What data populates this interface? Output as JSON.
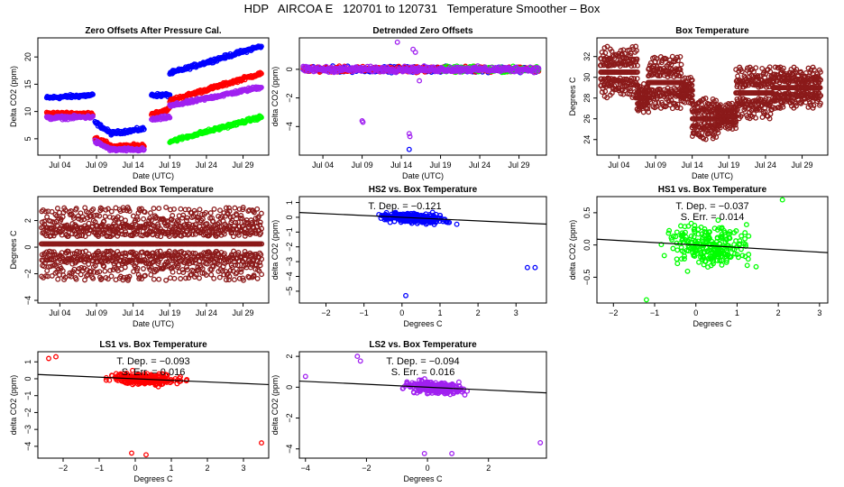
{
  "page_title": "HDP   AIRCOA E   120701 to 120731   Temperature Smoother – Box",
  "colors": {
    "blue": "#0000ff",
    "red": "#ff0000",
    "purple": "#a020f0",
    "green": "#00ff00",
    "brown": "#8b1a1a",
    "line": "#000000"
  },
  "chart_data": [
    {
      "id": "zero-offsets",
      "type": "scatter",
      "title": "Zero Offsets After Pressure Cal.",
      "xlabel": "Date (UTC)",
      "ylabel": "Delta CO2 (ppm)",
      "xlim": [
        1,
        32.5
      ],
      "ylim": [
        2,
        23.5
      ],
      "xticks": [
        4,
        9,
        14,
        19,
        24,
        29
      ],
      "xtick_labels": [
        "Jul 04",
        "Jul 09",
        "Jul 14",
        "Jul 19",
        "Jul 24",
        "Jul 29"
      ],
      "yticks": [
        5,
        10,
        15,
        20
      ],
      "ytick_labels": [
        "5",
        "10",
        "15",
        "20"
      ],
      "series": [
        {
          "name": "HS2",
          "color": "blue",
          "segments": [
            [
              2.2,
              8.5,
              12.5,
              13.0
            ],
            [
              8.8,
              11.0,
              8.0,
              6.0
            ],
            [
              11.0,
              15.5,
              6.0,
              6.8
            ],
            [
              16.5,
              19.0,
              13.0,
              13.0
            ],
            [
              19.0,
              31.5,
              17.0,
              22.0
            ]
          ]
        },
        {
          "name": "LS1",
          "color": "red",
          "segments": [
            [
              2.2,
              8.5,
              9.6,
              9.6
            ],
            [
              8.8,
              11.0,
              5.2,
              3.8
            ],
            [
              11.0,
              15.5,
              3.5,
              3.8
            ],
            [
              16.5,
              19.0,
              9.5,
              10.5
            ],
            [
              19.0,
              31.5,
              12.0,
              17.0
            ]
          ]
        },
        {
          "name": "LS2",
          "color": "purple",
          "segments": [
            [
              2.2,
              8.5,
              8.8,
              9.0
            ],
            [
              8.8,
              11.0,
              4.5,
              3.0
            ],
            [
              11.0,
              15.5,
              3.0,
              3.0
            ],
            [
              16.5,
              19.0,
              8.5,
              9.0
            ],
            [
              19.0,
              31.5,
              11.0,
              14.5
            ]
          ]
        },
        {
          "name": "HS1",
          "color": "green",
          "segments": [
            [
              19.0,
              31.5,
              4.5,
              9.0
            ]
          ]
        }
      ]
    },
    {
      "id": "detrended-zero",
      "type": "scatter",
      "title": "Detrended Zero Offsets",
      "xlabel": "Date (UTC)",
      "ylabel": "delta CO2 (ppm)",
      "xlim": [
        1,
        32.5
      ],
      "ylim": [
        -6,
        2.2
      ],
      "xticks": [
        4,
        9,
        14,
        19,
        24,
        29
      ],
      "xtick_labels": [
        "Jul 04",
        "Jul 09",
        "Jul 14",
        "Jul 19",
        "Jul 24",
        "Jul 29"
      ],
      "yticks": [
        -4,
        -2,
        0
      ],
      "ytick_labels": [
        "−4",
        "−2",
        "0"
      ],
      "series": [
        {
          "name": "HS2",
          "color": "blue",
          "segments": [
            [
              1.5,
              31.5,
              0.0,
              0.0
            ]
          ]
        },
        {
          "name": "LS1",
          "color": "red",
          "segments": [
            [
              1.5,
              31.5,
              0.0,
              0.0
            ]
          ]
        },
        {
          "name": "HS1",
          "color": "green",
          "segments": [
            [
              19.0,
              31.5,
              0.0,
              0.0
            ]
          ]
        },
        {
          "name": "LS2",
          "color": "purple",
          "segments": [
            [
              1.5,
              31.5,
              0.0,
              0.0
            ]
          ]
        }
      ],
      "outliers": [
        [
          9,
          -3.6
        ],
        [
          9.1,
          -3.7
        ],
        [
          15,
          -4.5
        ],
        [
          15.1,
          -4.7
        ],
        [
          15,
          -5.6
        ],
        [
          13.5,
          1.9
        ],
        [
          15.8,
          1.2
        ],
        [
          15.5,
          1.4
        ],
        [
          16.3,
          -0.8
        ]
      ]
    },
    {
      "id": "box-temp",
      "type": "scatter",
      "title": "Box Temperature",
      "xlabel": "Date (UTC)",
      "ylabel": "Degrees C",
      "xlim": [
        1,
        32.5
      ],
      "ylim": [
        22.5,
        33.8
      ],
      "xticks": [
        4,
        9,
        14,
        19,
        24,
        29
      ],
      "xtick_labels": [
        "Jul 04",
        "Jul 09",
        "Jul 14",
        "Jul 19",
        "Jul 24",
        "Jul 29"
      ],
      "yticks": [
        24,
        26,
        28,
        30,
        32
      ],
      "ytick_labels": [
        "24",
        "26",
        "28",
        "30",
        "32"
      ],
      "series": [
        {
          "name": "Box",
          "color": "brown",
          "bands": [
            [
              1.5,
              6.5,
              28,
              33
            ],
            [
              6.5,
              8,
              26.5,
              29.5
            ],
            [
              8,
              12.5,
              27,
              32
            ],
            [
              12.5,
              14,
              27.5,
              30
            ],
            [
              14,
              17.5,
              24,
              28
            ],
            [
              17.5,
              20,
              25,
              27.5
            ],
            [
              20,
              25,
              26,
              31
            ],
            [
              25,
              31.5,
              27,
              31
            ]
          ]
        }
      ]
    },
    {
      "id": "detrended-box",
      "type": "scatter",
      "title": "Detrended Box Temperature",
      "xlabel": "Date (UTC)",
      "ylabel": "Degrees C",
      "xlim": [
        1,
        32.5
      ],
      "ylim": [
        -4.2,
        3.8
      ],
      "xticks": [
        4,
        9,
        14,
        19,
        24,
        29
      ],
      "xtick_labels": [
        "Jul 04",
        "Jul 09",
        "Jul 14",
        "Jul 19",
        "Jul 24",
        "Jul 29"
      ],
      "yticks": [
        -4,
        -2,
        0,
        2
      ],
      "ytick_labels": [
        "−4",
        "−2",
        "0",
        "2"
      ],
      "series": [
        {
          "name": "Box",
          "color": "brown",
          "bands": [
            [
              1.5,
              31.5,
              -2.5,
              3.0
            ]
          ]
        }
      ]
    },
    {
      "id": "hs2-vs-box",
      "type": "scatter",
      "title": "HS2 vs. Box Temperature",
      "xlabel": "Degrees C",
      "ylabel": "delta CO2 (ppm)",
      "xlim": [
        -2.7,
        3.8
      ],
      "ylim": [
        -5.8,
        1.4
      ],
      "xticks": [
        -2,
        -1,
        0,
        1,
        2,
        3
      ],
      "xtick_labels": [
        "−2",
        "−1",
        "0",
        "1",
        "2",
        "3"
      ],
      "yticks": [
        -5,
        -4,
        -3,
        -2,
        -1,
        0,
        1
      ],
      "ytick_labels": [
        "−5",
        "−4",
        "−3",
        "−2",
        "−1",
        "0",
        "1"
      ],
      "color": "blue",
      "slope": -0.121,
      "spread": 0.5,
      "outliers": [
        [
          0.1,
          -5.3
        ],
        [
          3.5,
          -3.4
        ],
        [
          3.3,
          -3.4
        ]
      ],
      "annotations": [
        "T. Dep. =  −0.121"
      ]
    },
    {
      "id": "hs1-vs-box",
      "type": "scatter",
      "title": "HS1 vs. Box Temperature",
      "xlabel": "Degrees C",
      "ylabel": "delta CO2 (ppm)",
      "xlim": [
        -2.4,
        3.2
      ],
      "ylim": [
        -0.9,
        0.75
      ],
      "xticks": [
        -2,
        -1,
        0,
        1,
        2,
        3
      ],
      "xtick_labels": [
        "−2",
        "−1",
        "0",
        "1",
        "2",
        "3"
      ],
      "yticks": [
        -0.5,
        0,
        0.5
      ],
      "ytick_labels": [
        "−0.5",
        "0.0",
        "0.5"
      ],
      "color": "green",
      "slope": -0.037,
      "spread": 0.45,
      "outliers": [
        [
          -1.2,
          -0.85
        ],
        [
          2.1,
          0.7
        ]
      ],
      "annotations": [
        "T. Dep. =  −0.037",
        "S. Err. =  0.014"
      ]
    },
    {
      "id": "ls1-vs-box",
      "type": "scatter",
      "title": "LS1 vs. Box Temperature",
      "xlabel": "Degrees C",
      "ylabel": "delta CO2 (ppm)",
      "xlim": [
        -2.7,
        3.7
      ],
      "ylim": [
        -4.7,
        1.6
      ],
      "xticks": [
        -2,
        -1,
        0,
        1,
        2,
        3
      ],
      "xtick_labels": [
        "−2",
        "−1",
        "0",
        "1",
        "2",
        "3"
      ],
      "yticks": [
        -4,
        -3,
        -2,
        -1,
        0,
        1
      ],
      "ytick_labels": [
        "−4",
        "−3",
        "−2",
        "−1",
        "0",
        "1"
      ],
      "color": "red",
      "slope": -0.093,
      "spread": 0.5,
      "outliers": [
        [
          -0.1,
          -4.4
        ],
        [
          0.3,
          -4.5
        ],
        [
          3.5,
          -3.8
        ],
        [
          -2.4,
          1.2
        ],
        [
          -2.2,
          1.3
        ]
      ],
      "annotations": [
        "T. Dep. =  −0.093",
        "S. Err. =  0.016"
      ]
    },
    {
      "id": "ls2-vs-box",
      "type": "scatter",
      "title": "LS2 vs. Box Temperature",
      "xlabel": "Degrees C",
      "ylabel": "delta CO2 (ppm)",
      "xlim": [
        -4.2,
        3.9
      ],
      "ylim": [
        -4.6,
        2.3
      ],
      "xticks": [
        -4,
        -2,
        0,
        2
      ],
      "xtick_labels": [
        "−4",
        "−2",
        "0",
        "2"
      ],
      "yticks": [
        -4,
        -2,
        0,
        2
      ],
      "ytick_labels": [
        "−4",
        "−2",
        "0",
        "2"
      ],
      "color": "purple",
      "slope": -0.094,
      "spread": 0.55,
      "outliers": [
        [
          -0.1,
          -4.3
        ],
        [
          0.8,
          -4.3
        ],
        [
          3.7,
          -3.6
        ],
        [
          -2.3,
          2.0
        ],
        [
          -2.2,
          1.7
        ],
        [
          -4.0,
          0.7
        ]
      ],
      "annotations": [
        "T. Dep. =  −0.094",
        "S. Err. =  0.016"
      ]
    }
  ]
}
